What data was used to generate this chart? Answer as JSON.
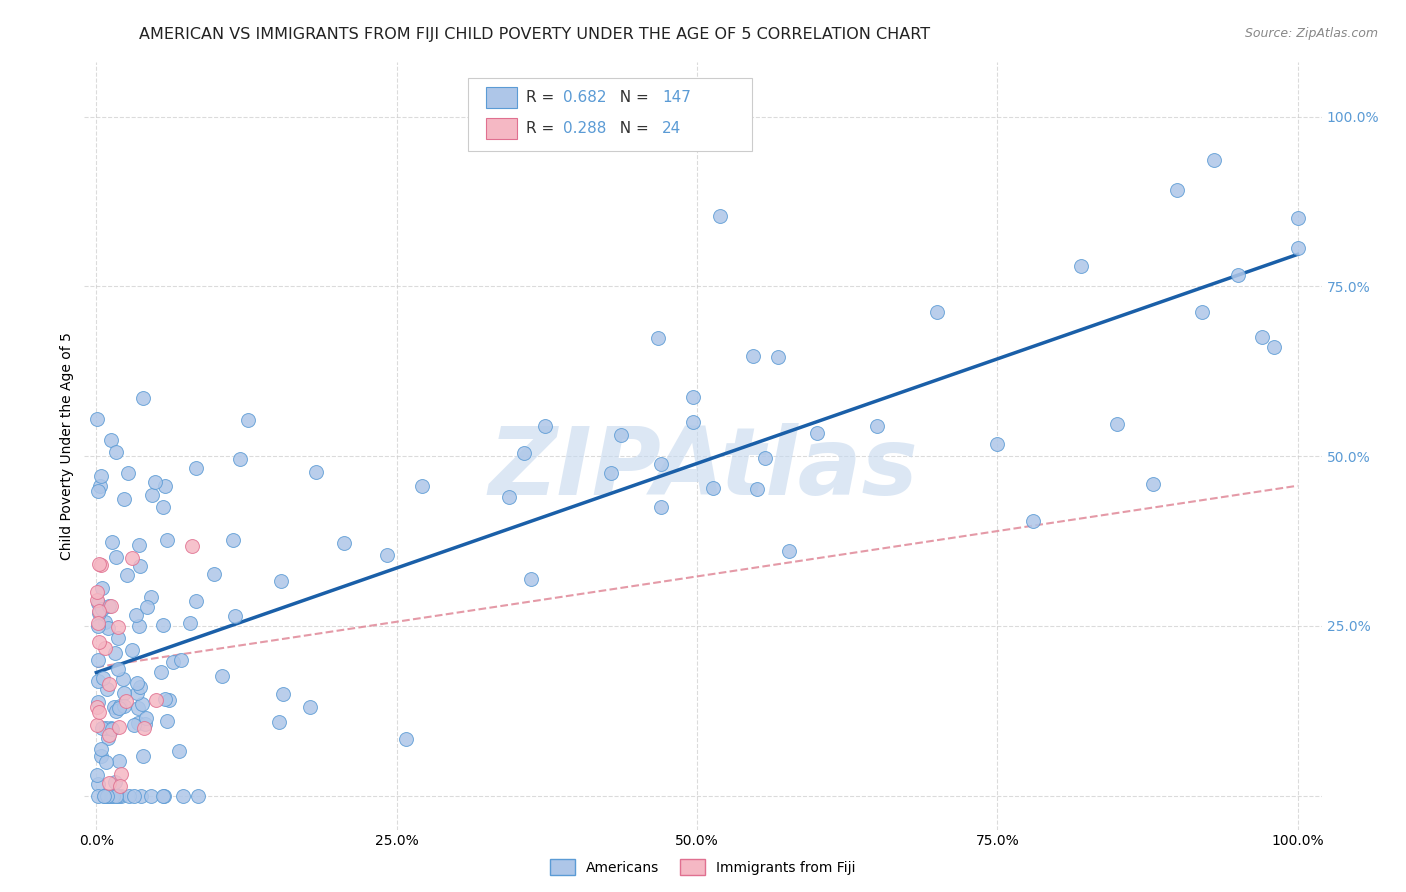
{
  "title": "AMERICAN VS IMMIGRANTS FROM FIJI CHILD POVERTY UNDER THE AGE OF 5 CORRELATION CHART",
  "source": "Source: ZipAtlas.com",
  "ylabel": "Child Poverty Under the Age of 5",
  "r_american": 0.682,
  "n_american": 147,
  "r_fiji": 0.288,
  "n_fiji": 24,
  "background_color": "#ffffff",
  "american_color": "#aec6e8",
  "american_edge_color": "#5b9bd5",
  "fiji_color": "#f5b8c4",
  "fiji_edge_color": "#e07090",
  "trend_american_color": "#1a5fa8",
  "trend_fiji_color": "#e08898",
  "watermark_color": "#c5d8ee",
  "grid_color": "#cccccc",
  "right_tick_color": "#5b9bd5",
  "title_fontsize": 11.5,
  "axis_label_fontsize": 10,
  "tick_fontsize": 10,
  "source_fontsize": 9
}
